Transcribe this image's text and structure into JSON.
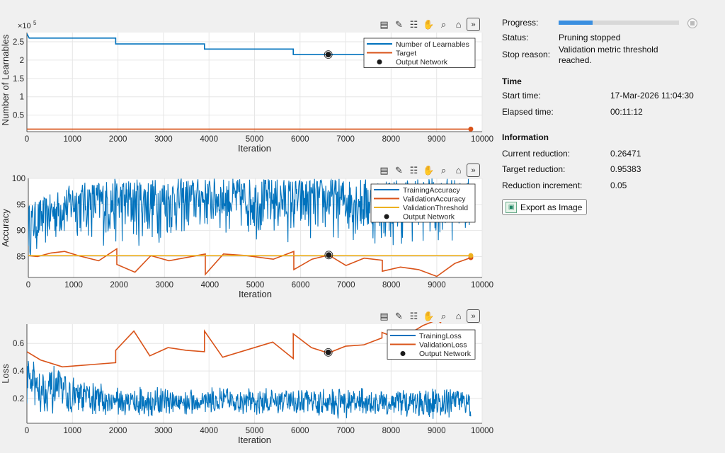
{
  "toolbar_icons": [
    "export-icon",
    "brush-icon",
    "datatip-icon",
    "pan-icon",
    "zoom-icon",
    "home-icon",
    "collapse-icon"
  ],
  "plots": [
    {
      "id": "learnables",
      "ylabel": "Number of Learnables",
      "xlabel": "Iteration",
      "exponent": "×10",
      "exponent_sup": "5",
      "xticks": [
        0,
        1000,
        2000,
        3000,
        4000,
        5000,
        6000,
        7000,
        8000,
        9000,
        10000
      ],
      "yticks": [
        0.5,
        1,
        1.5,
        2,
        2.5
      ],
      "ylim": [
        0.05,
        2.75
      ],
      "legend": [
        "Number of Learnables",
        "Target",
        "Output Network"
      ],
      "colors": {
        "primary": "#0072bd",
        "secondary": "#d95319",
        "marker": "#1a1a1a"
      }
    },
    {
      "id": "accuracy",
      "ylabel": "Accuracy",
      "xlabel": "Iteration",
      "xticks": [
        0,
        1000,
        2000,
        3000,
        4000,
        5000,
        6000,
        7000,
        8000,
        9000,
        10000
      ],
      "yticks": [
        85,
        90,
        95,
        100
      ],
      "ylim": [
        81,
        100
      ],
      "legend": [
        "TrainingAccuracy",
        "ValidationAccuracy",
        "ValidationThreshold",
        "Output Network"
      ],
      "colors": {
        "primary": "#0072bd",
        "secondary": "#d95319",
        "threshold": "#edb120",
        "marker": "#1a1a1a"
      }
    },
    {
      "id": "loss",
      "ylabel": "Loss",
      "xlabel": "Iteration",
      "xticks": [
        0,
        1000,
        2000,
        3000,
        4000,
        5000,
        6000,
        7000,
        8000,
        9000,
        10000
      ],
      "yticks": [
        0.2,
        0.4,
        0.6
      ],
      "ylim": [
        0.02,
        0.74
      ],
      "legend": [
        "TrainingLoss",
        "ValidationLoss",
        "Output Network"
      ],
      "colors": {
        "primary": "#0072bd",
        "secondary": "#d95319",
        "marker": "#1a1a1a"
      }
    }
  ],
  "chart_data": [
    {
      "type": "line",
      "ylabel": "Number of Learnables",
      "xlabel": "Iteration",
      "xlim": [
        0,
        10000
      ],
      "y_exponent": 5,
      "series": [
        {
          "name": "Number of Learnables",
          "x": [
            0,
            50,
            1950,
            1950,
            3900,
            3900,
            5850,
            5850,
            7800,
            7800,
            9750
          ],
          "y": [
            2.72,
            2.6,
            2.6,
            2.44,
            2.44,
            2.3,
            2.3,
            2.15,
            2.15,
            2.0,
            2.0
          ]
        },
        {
          "name": "Target",
          "x": [
            0,
            9750
          ],
          "y": [
            0.12,
            0.12
          ]
        },
        {
          "name": "Output Network",
          "x": [
            6620
          ],
          "y": [
            2.15
          ]
        }
      ]
    },
    {
      "type": "line",
      "ylabel": "Accuracy",
      "xlabel": "Iteration",
      "xlim": [
        0,
        10000
      ],
      "series": [
        {
          "name": "TrainingAccuracy",
          "x_range": [
            0,
            9750
          ],
          "band_low": [
            84,
            88,
            86,
            87,
            89,
            88,
            87,
            88,
            86,
            87,
            88
          ],
          "band_high": [
            95,
            99,
            100,
            100,
            100,
            100,
            100,
            100,
            100,
            100,
            100
          ]
        },
        {
          "name": "ValidationAccuracy",
          "x": [
            0,
            200,
            500,
            800,
            1100,
            1550,
            1950,
            1950,
            2350,
            2700,
            3100,
            3900,
            3900,
            4300,
            4800,
            5400,
            5850,
            5850,
            6250,
            6620,
            7000,
            7400,
            7800,
            7800,
            8200,
            8600,
            9000,
            9400,
            9750
          ],
          "y": [
            85.2,
            85.0,
            85.7,
            86.0,
            85.2,
            84.2,
            86.5,
            83.5,
            82.0,
            85.2,
            84.2,
            85.5,
            81.6,
            85.5,
            85.2,
            84.5,
            86.0,
            82.5,
            84.5,
            85.3,
            83.3,
            84.7,
            84.3,
            82.2,
            83.0,
            82.5,
            81.2,
            83.7,
            84.8
          ]
        },
        {
          "name": "ValidationThreshold",
          "x": [
            0,
            9750
          ],
          "y": [
            85.2,
            85.2
          ]
        },
        {
          "name": "Output Network",
          "x": [
            6620
          ],
          "y": [
            85.3
          ]
        }
      ]
    },
    {
      "type": "line",
      "ylabel": "Loss",
      "xlabel": "Iteration",
      "xlim": [
        0,
        10000
      ],
      "series": [
        {
          "name": "TrainingLoss",
          "x_range": [
            0,
            9750
          ],
          "center": [
            0.32,
            0.22,
            0.18,
            0.17,
            0.18,
            0.17,
            0.18,
            0.17,
            0.17,
            0.17,
            0.17
          ],
          "spread": [
            0.2,
            0.12,
            0.1,
            0.1,
            0.09,
            0.1,
            0.09,
            0.1,
            0.1,
            0.1,
            0.1
          ]
        },
        {
          "name": "ValidationLoss",
          "x": [
            0,
            300,
            780,
            1950,
            1950,
            2350,
            2700,
            3100,
            3500,
            3900,
            3900,
            4300,
            5400,
            5850,
            5850,
            6250,
            6620,
            7000,
            7400,
            7800,
            7800,
            8200,
            8700,
            9000,
            9100
          ],
          "y": [
            0.54,
            0.48,
            0.43,
            0.46,
            0.55,
            0.69,
            0.51,
            0.57,
            0.55,
            0.54,
            0.69,
            0.5,
            0.61,
            0.49,
            0.67,
            0.57,
            0.53,
            0.58,
            0.59,
            0.64,
            0.68,
            0.63,
            0.73,
            0.77,
            0.75
          ]
        },
        {
          "name": "Output Network",
          "x": [
            6620
          ],
          "y": [
            0.535
          ]
        }
      ]
    }
  ],
  "info": {
    "progress_label": "Progress:",
    "progress_value": 0.28,
    "status_label": "Status:",
    "status_value": "Pruning stopped",
    "stop_label": "Stop reason:",
    "stop_value_line1": "Validation metric threshold",
    "stop_value_line2": "reached.",
    "time_header": "Time",
    "start_label": "Start time:",
    "start_value": "17-Mar-2026 11:04:30",
    "elapsed_label": "Elapsed time:",
    "elapsed_value": "00:11:12",
    "info_header": "Information",
    "current_label": "Current reduction:",
    "current_value": "0.26471",
    "target_label": "Target reduction:",
    "target_value": "0.95383",
    "increment_label": "Reduction increment:",
    "increment_value": "0.05",
    "export_label": "Export as Image"
  }
}
